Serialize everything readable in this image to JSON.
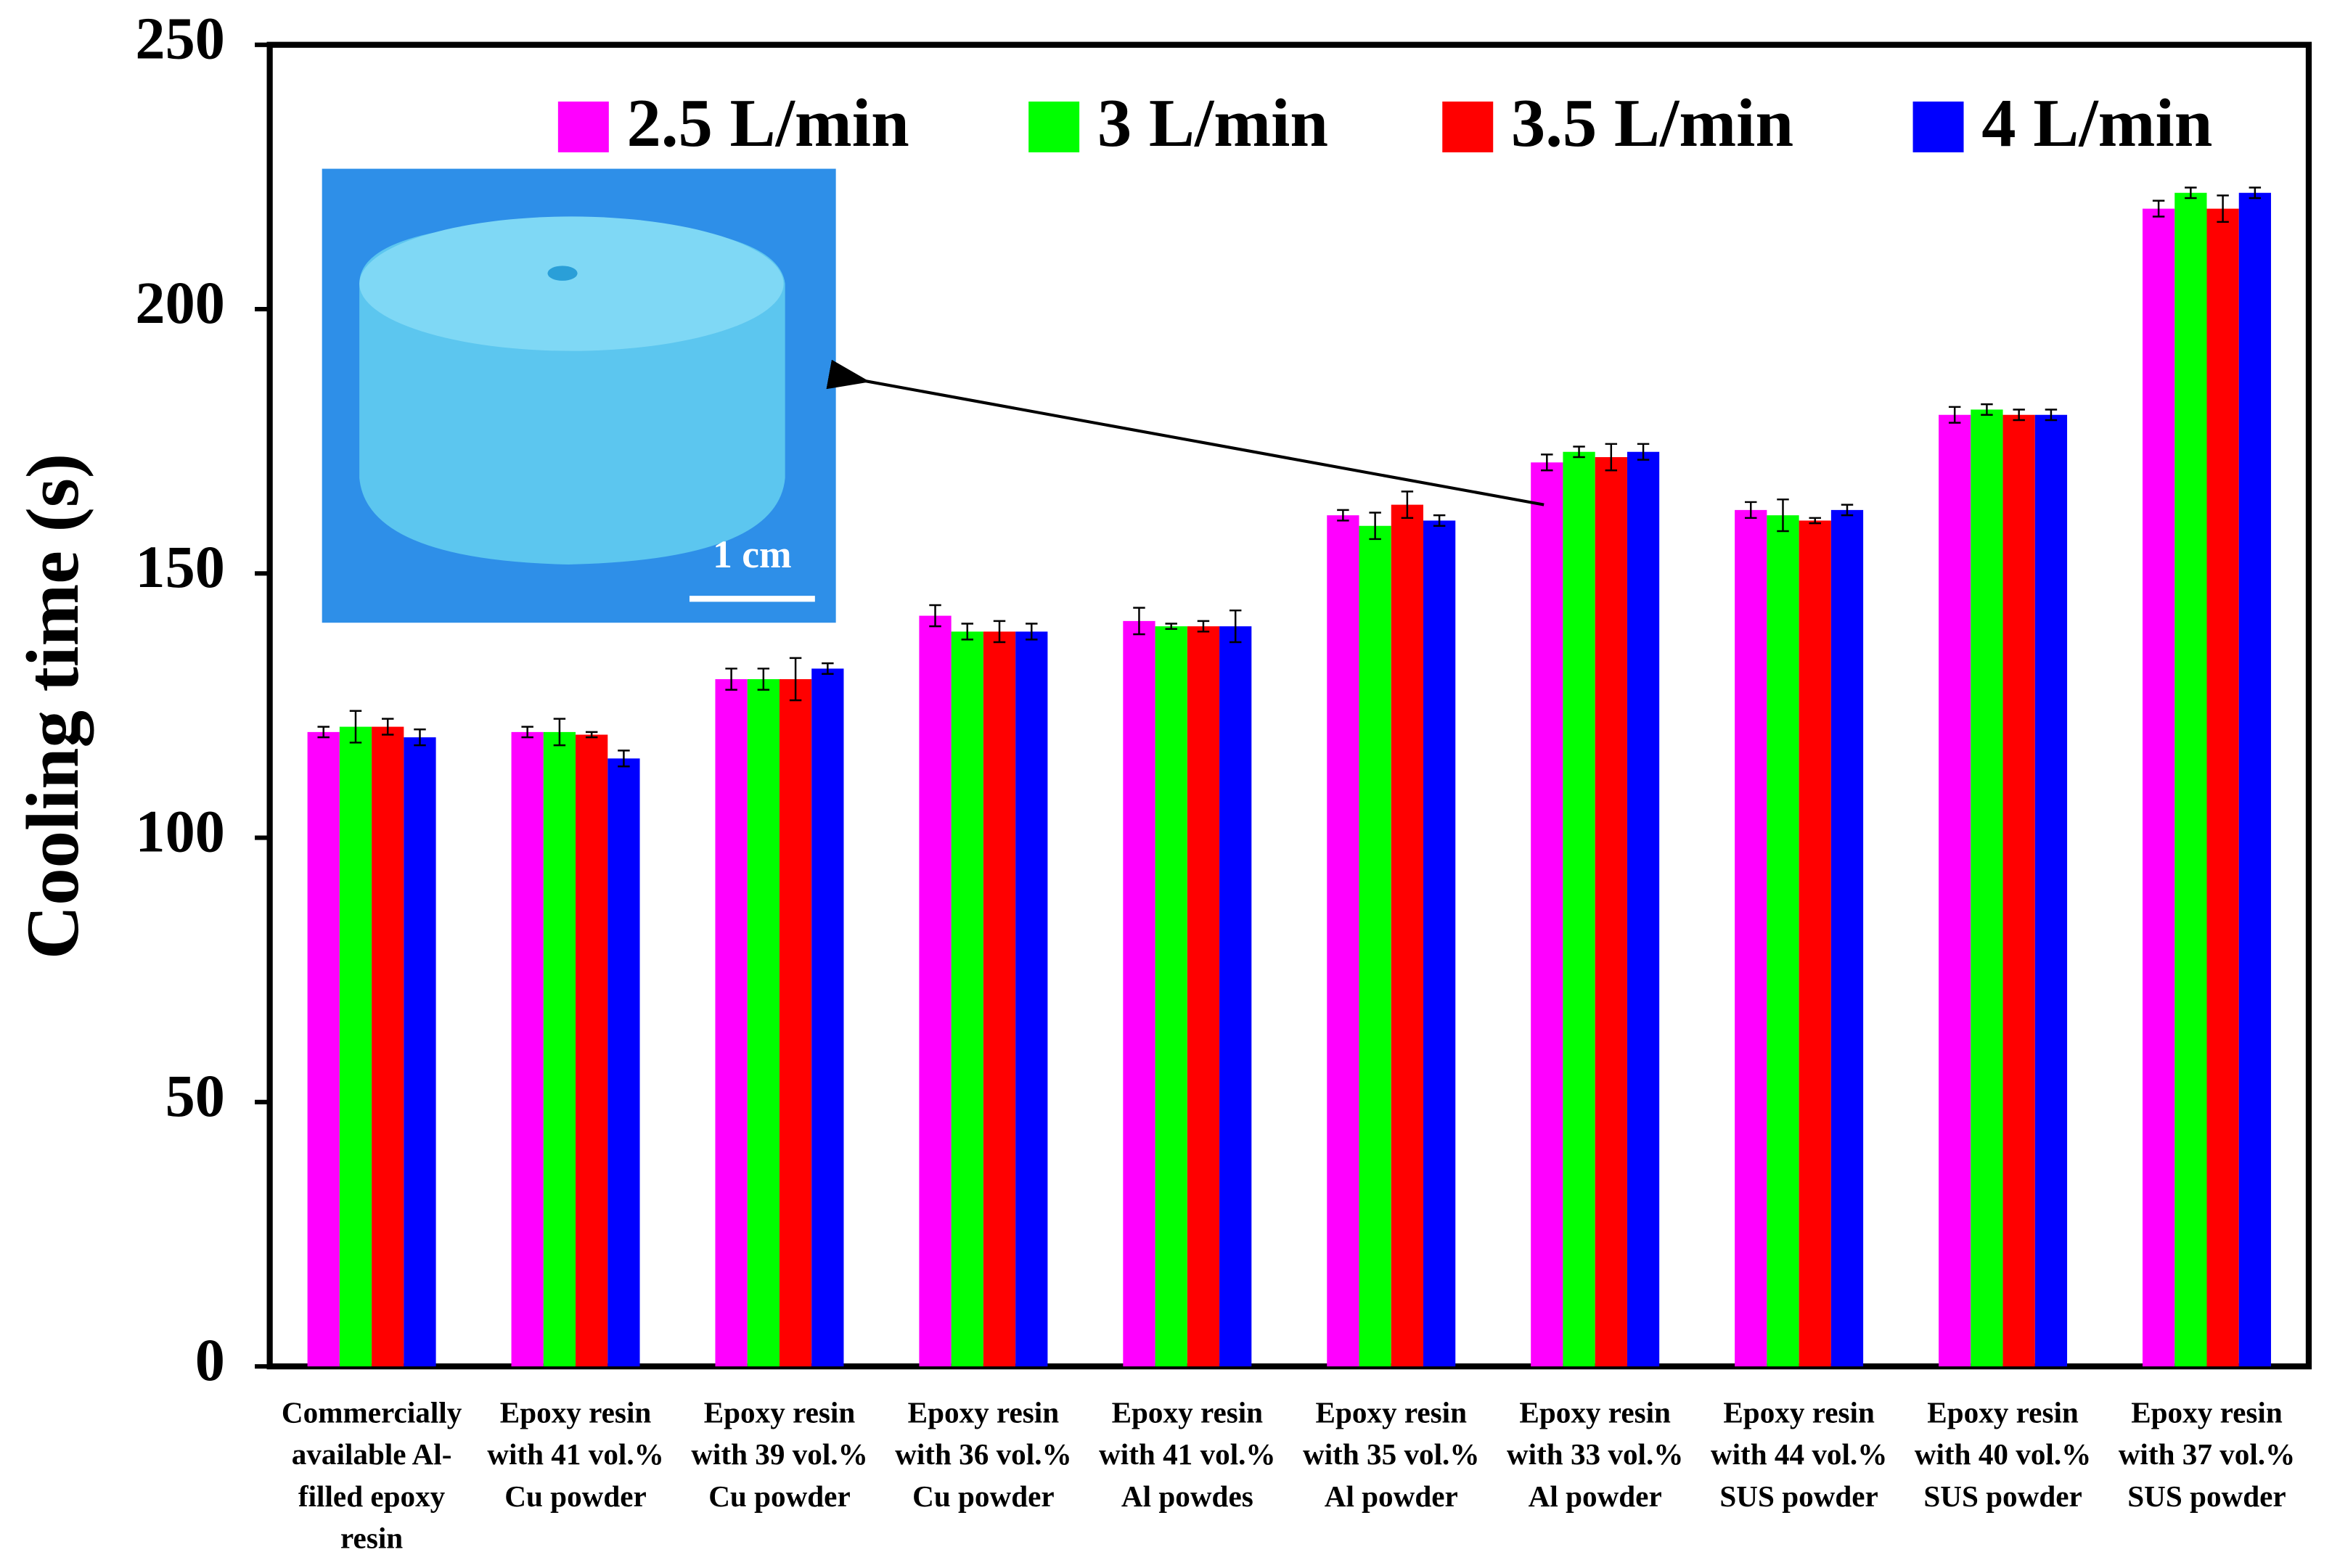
{
  "chart_data": {
    "type": "bar",
    "y_label": "Cooling time (s)",
    "categories": [
      [
        "Commercially",
        "available Al-",
        "filled epoxy",
        "resin"
      ],
      [
        "Epoxy resin",
        "with 41 vol.%",
        "Cu powder"
      ],
      [
        "Epoxy resin",
        "with 39 vol.%",
        "Cu powder"
      ],
      [
        "Epoxy resin",
        "with 36 vol.%",
        "Cu powder"
      ],
      [
        "Epoxy resin",
        "with 41 vol.%",
        "Al powdes"
      ],
      [
        "Epoxy resin",
        "with 35 vol.%",
        "Al powder"
      ],
      [
        "Epoxy resin",
        "with 33 vol.%",
        "Al powder"
      ],
      [
        "Epoxy resin",
        "with 44 vol.%",
        "SUS powder"
      ],
      [
        "Epoxy resin",
        "with 40 vol.%",
        "SUS powder"
      ],
      [
        "Epoxy resin",
        "with 37 vol.%",
        "SUS powder"
      ]
    ],
    "series": [
      {
        "name": "2.5 L/min",
        "color": "#ff00ff",
        "values": [
          120,
          120,
          130,
          142,
          141,
          161,
          171,
          162,
          180,
          219
        ],
        "errors": [
          1,
          1,
          2,
          2,
          2.5,
          1,
          1.5,
          1.5,
          1.5,
          1.5
        ]
      },
      {
        "name": "3 L/min",
        "color": "#00ff00",
        "values": [
          121,
          120,
          130,
          139,
          140,
          159,
          173,
          161,
          181,
          222
        ],
        "errors": [
          3,
          2.5,
          2,
          1.5,
          0.5,
          2.5,
          1,
          3,
          1,
          1
        ]
      },
      {
        "name": "3.5 L/min",
        "color": "#ff0000",
        "values": [
          121,
          119.5,
          130,
          139,
          140,
          163,
          172,
          160,
          180,
          219
        ],
        "errors": [
          1.5,
          0.5,
          4,
          2,
          1,
          2.5,
          2.5,
          0.5,
          1,
          2.5
        ]
      },
      {
        "name": "4 L/min",
        "color": "#0000ff",
        "values": [
          119,
          115,
          132,
          139,
          140,
          160,
          173,
          162,
          180,
          222
        ],
        "errors": [
          1.5,
          1.5,
          1,
          1.5,
          3,
          1,
          1.5,
          1,
          1,
          1
        ]
      }
    ],
    "ylim": [
      0,
      250
    ],
    "yticks": [
      0,
      50,
      100,
      150,
      200,
      250
    ],
    "legend": "top",
    "inset_scale_label": "1 cm"
  }
}
